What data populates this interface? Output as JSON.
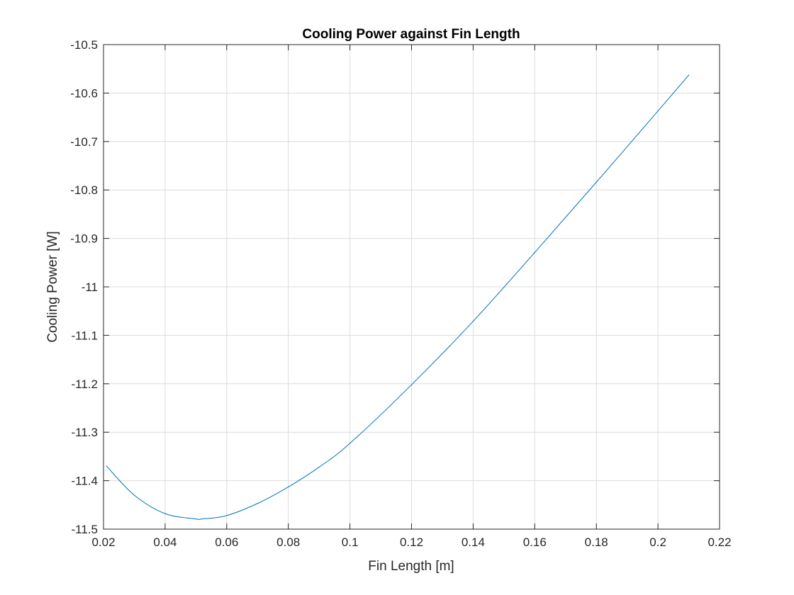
{
  "chart_data": {
    "type": "line",
    "title": "Cooling Power against Fin Length",
    "xlabel": "Fin Length [m]",
    "ylabel": "Cooling Power [W]",
    "xlim": [
      0.02,
      0.22
    ],
    "ylim": [
      -11.5,
      -10.5
    ],
    "xticks": [
      "0.02",
      "0.04",
      "0.06",
      "0.08",
      "0.1",
      "0.12",
      "0.14",
      "0.16",
      "0.18",
      "0.2",
      "0.22"
    ],
    "yticks": [
      "-10.5",
      "-10.6",
      "-10.7",
      "-10.8",
      "-10.9",
      "-11",
      "-11.1",
      "-11.2",
      "-11.3",
      "-11.4",
      "-11.5"
    ],
    "grid": true,
    "series": [
      {
        "color": "#0072bd",
        "x": [
          0.021,
          0.03,
          0.04,
          0.05,
          0.052,
          0.06,
          0.07,
          0.08,
          0.09,
          0.1,
          0.12,
          0.14,
          0.16,
          0.18,
          0.2,
          0.21
        ],
        "y": [
          -11.37,
          -11.43,
          -11.468,
          -11.479,
          -11.479,
          -11.472,
          -11.447,
          -11.413,
          -11.372,
          -11.323,
          -11.202,
          -11.071,
          -10.929,
          -10.784,
          -10.637,
          -10.563
        ]
      }
    ]
  }
}
